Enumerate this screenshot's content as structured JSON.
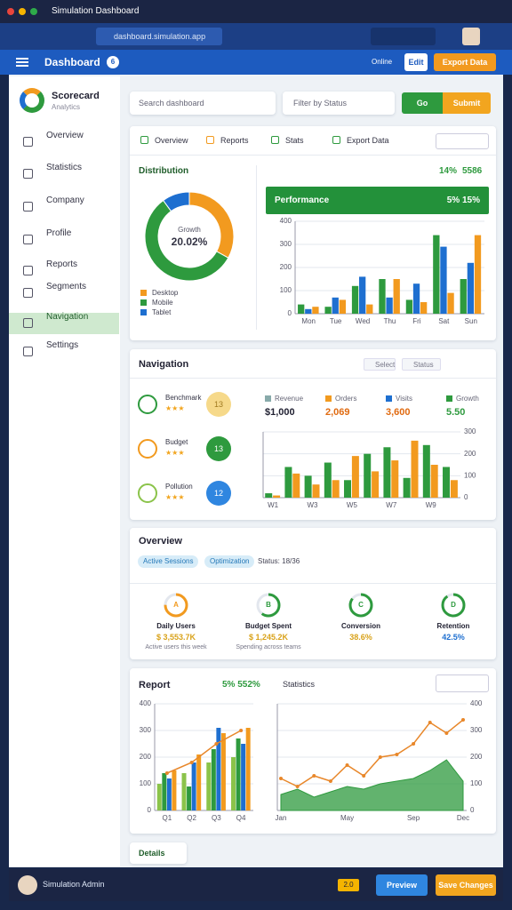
{
  "browser": {
    "tab_title": "Simulation Dashboard",
    "address": "dashboard.simulation.app"
  },
  "header": {
    "title": "Dashboard",
    "badge": "6",
    "status": "Online",
    "edit": "Edit",
    "export": "Export Data"
  },
  "sidebar": {
    "brand": "Scorecard",
    "brand_sub": "Analytics",
    "items": [
      "Overview",
      "Statistics",
      "Company",
      "Profile",
      "Reports",
      "Segments",
      "Navigation",
      "Settings"
    ]
  },
  "toolbar": {
    "search": "Search dashboard",
    "filter": "Filter by Status",
    "go": "Go",
    "submit": "Submit"
  },
  "tabs": [
    "Overview",
    "Reports",
    "Stats",
    "Export Data"
  ],
  "distribution": {
    "title": "Distribution",
    "center_label": "Growth",
    "center_value": "20.02%",
    "chart": {
      "type": "pie",
      "categories": [
        "Desktop",
        "Mobile",
        "Tablet"
      ],
      "values": [
        33,
        57,
        10
      ],
      "colors": [
        "#f29a1f",
        "#2e9a3e",
        "#1e6fd0"
      ]
    }
  },
  "performance": {
    "change": "14%",
    "total": "5586",
    "banner": "Performance",
    "banner_value": "5% 15%",
    "chart": {
      "type": "bar",
      "categories": [
        "Mon",
        "Tue",
        "Wed",
        "Thu",
        "Fri",
        "Sat",
        "Sun"
      ],
      "ylim": [
        0,
        400
      ],
      "yticks": [
        0,
        100,
        200,
        300,
        400
      ],
      "series": [
        {
          "color": "#2e9a3e",
          "values": [
            40,
            30,
            120,
            150,
            60,
            340,
            150
          ]
        },
        {
          "color": "#1e6fd0",
          "values": [
            20,
            70,
            160,
            70,
            130,
            290,
            220
          ]
        },
        {
          "color": "#f29a1f",
          "values": [
            30,
            60,
            40,
            150,
            50,
            90,
            340
          ]
        }
      ]
    }
  },
  "team": {
    "title": "Navigation",
    "filters": [
      "Select",
      "Status"
    ],
    "items": [
      {
        "name": "Benchmark",
        "stars": "★★★",
        "score": "13"
      },
      {
        "name": "Budget",
        "stars": "★★★",
        "score": "13"
      },
      {
        "name": "Pollution",
        "stars": "★★★",
        "score": "12"
      }
    ],
    "stats": [
      {
        "label": "Revenue",
        "value": "$1,000"
      },
      {
        "label": "Orders",
        "value": "2,069"
      },
      {
        "label": "Visits",
        "value": "3,600"
      },
      {
        "label": "Growth",
        "value": "5.50"
      }
    ],
    "chart": {
      "type": "bar",
      "categories": [
        "W1",
        null,
        "W3",
        null,
        "W5",
        null,
        "W7",
        null,
        "W9",
        null
      ],
      "ylim": [
        0,
        300
      ],
      "yticks": [
        0,
        100,
        200,
        300
      ],
      "series": [
        {
          "color": "#2e9a3e",
          "values": [
            20,
            140,
            100,
            160,
            80,
            200,
            230,
            90,
            240,
            140
          ]
        },
        {
          "color": "#f29a1f",
          "values": [
            10,
            110,
            60,
            80,
            190,
            120,
            170,
            260,
            150,
            80
          ]
        }
      ]
    }
  },
  "overview": {
    "title": "Overview",
    "chips": [
      "Active Sessions",
      "Optimization"
    ],
    "status": "Status: 18/36",
    "items": [
      {
        "icon": "A",
        "title": "Daily Users",
        "value": "$ 3,553.7K",
        "sub": "Active users this week",
        "progress": 75,
        "color": "#f29a1f"
      },
      {
        "icon": "B",
        "title": "Budget Spent",
        "value": "$ 1,245.2K",
        "sub": "Spending across teams",
        "progress": 60,
        "color": "#2e9a3e"
      },
      {
        "icon": "C",
        "title": "Conversion",
        "value": "38.6%",
        "sub": "",
        "progress": 85,
        "color": "#2e9a3e"
      },
      {
        "icon": "D",
        "title": "Retention",
        "value": "42.5%",
        "sub": "",
        "progress": 90,
        "color": "#2e9a3e"
      }
    ]
  },
  "report": {
    "title": "Report",
    "change": "5% 552%",
    "subtitle": "Statistics",
    "bar_chart": {
      "type": "bar",
      "categories": [
        "Q1",
        "Q2",
        "Q3",
        "Q4"
      ],
      "ylim": [
        0,
        400
      ],
      "yticks": [
        0,
        100,
        200,
        300,
        400
      ],
      "series": [
        {
          "color": "#8bc34a",
          "values": [
            100,
            140,
            180,
            200
          ]
        },
        {
          "color": "#2e9a3e",
          "values": [
            140,
            90,
            230,
            270
          ]
        },
        {
          "color": "#1e6fd0",
          "values": [
            120,
            180,
            310,
            250
          ]
        },
        {
          "color": "#f29a1f",
          "values": [
            150,
            210,
            290,
            310
          ]
        },
        {
          "type": "line",
          "color": "#e8872a",
          "values": [
            140,
            180,
            250,
            300
          ]
        }
      ]
    },
    "line_chart": {
      "type": "line",
      "categories": [
        "Jan",
        null,
        null,
        null,
        "May",
        null,
        null,
        null,
        "Sep",
        null,
        null,
        "Dec"
      ],
      "ylim": [
        0,
        400
      ],
      "yticks": [
        0,
        100,
        200,
        300,
        400
      ],
      "series": [
        {
          "type": "area",
          "color": "#2e9a3e",
          "values": [
            60,
            80,
            50,
            70,
            90,
            80,
            100,
            110,
            120,
            150,
            190,
            110
          ]
        },
        {
          "type": "line",
          "color": "#e8872a",
          "values": [
            120,
            90,
            130,
            110,
            170,
            130,
            200,
            210,
            250,
            330,
            290,
            340
          ]
        }
      ]
    }
  },
  "details": "Details",
  "footer": {
    "user": "Simulation Admin",
    "badge": "2.0",
    "preview": "Preview",
    "save": "Save Changes"
  }
}
